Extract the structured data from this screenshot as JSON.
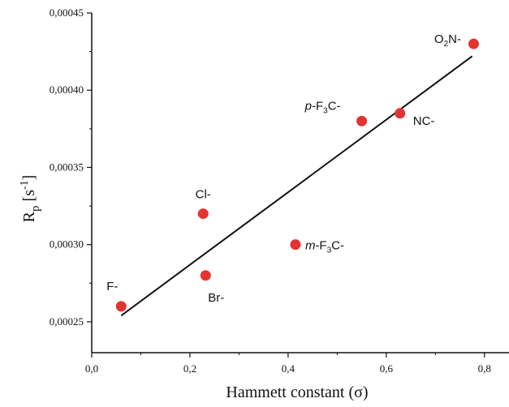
{
  "chart_data": {
    "type": "scatter",
    "title": "",
    "xlabel": "Hammett constant (σ)",
    "ylabel_parts": {
      "main": "R",
      "main_sub": "p",
      "unit_open": " [s",
      "unit_sup": "-1",
      "unit_close": "]"
    },
    "xlim": [
      0.0,
      0.85
    ],
    "ylim": [
      0.00023,
      0.00045
    ],
    "x_ticks": [
      0.0,
      0.2,
      0.4,
      0.6,
      0.8
    ],
    "x_tick_labels": [
      "0,0",
      "0,2",
      "0,4",
      "0,6",
      "0,8"
    ],
    "y_ticks": [
      0.00025,
      0.0003,
      0.00035,
      0.0004,
      0.00045
    ],
    "y_tick_labels": [
      "0,00025",
      "0,00030",
      "0,00035",
      "0,00040",
      "0,00045"
    ],
    "grid": false,
    "points": [
      {
        "x": 0.06,
        "y": 0.00026,
        "label": {
          "pre": "",
          "pre_italic": "",
          "main": "F-",
          "sub": "",
          "post": ""
        }
      },
      {
        "x": 0.227,
        "y": 0.00032,
        "label": {
          "pre": "",
          "pre_italic": "",
          "main": "Cl-",
          "sub": "",
          "post": ""
        }
      },
      {
        "x": 0.232,
        "y": 0.00028,
        "label": {
          "pre": "",
          "pre_italic": "",
          "main": "Br-",
          "sub": "",
          "post": ""
        }
      },
      {
        "x": 0.415,
        "y": 0.0003,
        "label": {
          "pre": "",
          "pre_italic": "m",
          "main": "-F",
          "sub": "3",
          "post": "C-"
        }
      },
      {
        "x": 0.55,
        "y": 0.00038,
        "label": {
          "pre": "",
          "pre_italic": "p",
          "main": "-F",
          "sub": "3",
          "post": "C-"
        }
      },
      {
        "x": 0.628,
        "y": 0.000385,
        "label": {
          "pre": "",
          "pre_italic": "",
          "main": "NC-",
          "sub": "",
          "post": ""
        }
      },
      {
        "x": 0.778,
        "y": 0.00043,
        "label": {
          "pre": "",
          "pre_italic": "",
          "main": "O",
          "sub": "2",
          "post": "N-"
        }
      }
    ],
    "fit_line": {
      "x": [
        0.06,
        0.775
      ],
      "y": [
        0.000254,
        0.000422
      ]
    },
    "point_color": "#e3342f",
    "line_color": "#111111"
  }
}
